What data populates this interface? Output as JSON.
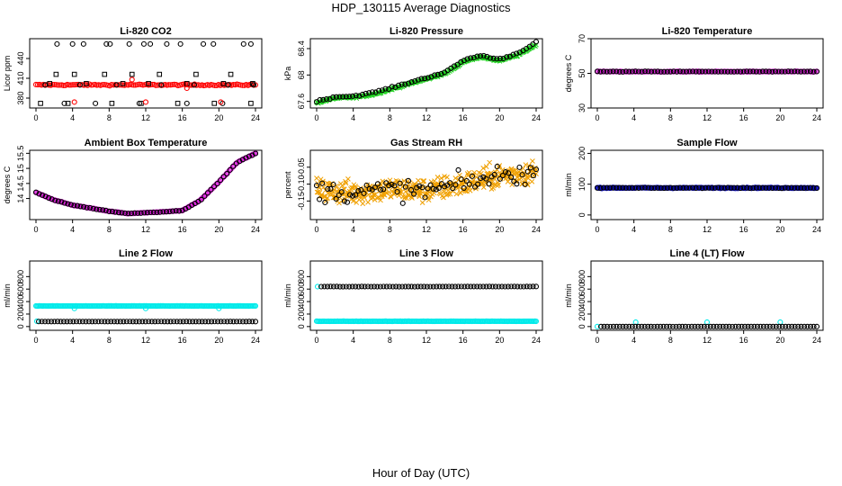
{
  "figure": {
    "title": "HDP_130115  Average Diagnostics",
    "xlabel": "Hour of Day (UTC)"
  },
  "colors": {
    "red": "#ff0000",
    "magenta": "#e020e0",
    "green": "#1fd21f",
    "orange": "#f0a000",
    "blue": "#1010d0",
    "cyan": "#00eaea",
    "black": "#000000"
  },
  "chart_data": [
    {
      "type": "scatter",
      "title": "Li-820 CO2",
      "ylabel": "Licor ppm",
      "xlim": [
        0,
        24
      ],
      "ylim": [
        365,
        470
      ],
      "xticks": [
        0,
        4,
        8,
        12,
        16,
        20,
        24
      ],
      "yticks": [
        380,
        410,
        440
      ],
      "series": [
        {
          "color": "red",
          "marker": "circle",
          "shape": "flat",
          "start": 400,
          "end": 400,
          "amp": 0,
          "noise": 1,
          "n": 120,
          "x0": 0,
          "x1": 24
        },
        {
          "color": "black",
          "marker": "square",
          "values": [
            [
              0.5,
              372
            ],
            [
              1.5,
              402
            ],
            [
              2.2,
              416
            ],
            [
              3.5,
              372
            ],
            [
              4.2,
              416
            ],
            [
              5.5,
              402
            ],
            [
              7.5,
              416
            ],
            [
              8.3,
              372
            ],
            [
              9.5,
              402
            ],
            [
              10.5,
              416
            ],
            [
              11.5,
              372
            ],
            [
              12.3,
              402
            ],
            [
              13.5,
              416
            ],
            [
              15.5,
              372
            ],
            [
              16.5,
              402
            ],
            [
              17.5,
              416
            ],
            [
              19.5,
              372
            ],
            [
              20.5,
              402
            ],
            [
              21.3,
              416
            ],
            [
              23.5,
              372
            ],
            [
              23.7,
              402
            ]
          ]
        },
        {
          "color": "black",
          "marker": "circle",
          "values": [
            [
              1.0,
              400
            ],
            [
              2.3,
              462
            ],
            [
              3.1,
              372
            ],
            [
              4.0,
              462
            ],
            [
              4.8,
              400
            ],
            [
              5.2,
              462
            ],
            [
              6.5,
              372
            ],
            [
              7.7,
              462
            ],
            [
              8.1,
              462
            ],
            [
              8.8,
              400
            ],
            [
              10.2,
              462
            ],
            [
              11.3,
              372
            ],
            [
              11.8,
              462
            ],
            [
              12.5,
              462
            ],
            [
              13.7,
              400
            ],
            [
              14.3,
              462
            ],
            [
              15.8,
              462
            ],
            [
              16.5,
              372
            ],
            [
              17.3,
              400
            ],
            [
              18.3,
              462
            ],
            [
              19.4,
              462
            ],
            [
              20.4,
              372
            ],
            [
              21.0,
              400
            ],
            [
              22.7,
              462
            ],
            [
              23.5,
              462
            ],
            [
              23.8,
              400
            ]
          ]
        },
        {
          "color": "red",
          "marker": "circle",
          "values": [
            [
              4.2,
              374
            ],
            [
              10.5,
              408
            ],
            [
              12.0,
              374
            ],
            [
              16.5,
              395
            ],
            [
              20.2,
              374
            ]
          ]
        }
      ]
    },
    {
      "type": "scatter",
      "title": "Li-820 Pressure",
      "ylabel": "kPa",
      "xlim": [
        0,
        24
      ],
      "ylim": [
        67.5,
        68.55
      ],
      "xticks": [
        0,
        4,
        8,
        12,
        16,
        20,
        24
      ],
      "yticks": [
        67.6,
        68.0,
        68.4
      ],
      "series": [
        {
          "color": "green",
          "marker": "cross",
          "shape": "curve",
          "points": [
            [
              0,
              67.58
            ],
            [
              2,
              67.65
            ],
            [
              4,
              67.66
            ],
            [
              6,
              67.7
            ],
            [
              8,
              67.78
            ],
            [
              10,
              67.86
            ],
            [
              12,
              67.94
            ],
            [
              14,
              68.02
            ],
            [
              15,
              68.1
            ],
            [
              16,
              68.2
            ],
            [
              18,
              68.28
            ],
            [
              19,
              68.24
            ],
            [
              20,
              68.22
            ],
            [
              22,
              68.3
            ],
            [
              24,
              68.46
            ]
          ],
          "noise": 0.015,
          "n": 260,
          "x0": 0,
          "x1": 24
        },
        {
          "color": "black",
          "marker": "circle",
          "shape": "curve",
          "points": [
            [
              0,
              67.6
            ],
            [
              2,
              67.67
            ],
            [
              4,
              67.68
            ],
            [
              6,
              67.73
            ],
            [
              8,
              67.8
            ],
            [
              10,
              67.88
            ],
            [
              12,
              67.96
            ],
            [
              14,
              68.04
            ],
            [
              15,
              68.12
            ],
            [
              16,
              68.22
            ],
            [
              18,
              68.3
            ],
            [
              19,
              68.26
            ],
            [
              20,
              68.24
            ],
            [
              22,
              68.33
            ],
            [
              24,
              68.5
            ]
          ],
          "noise": 0.012,
          "n": 68,
          "x0": 0,
          "x1": 24
        }
      ]
    },
    {
      "type": "scatter",
      "title": "Li-820 Temperature",
      "ylabel": "degrees C",
      "xlim": [
        0,
        24
      ],
      "ylim": [
        30,
        70
      ],
      "xticks": [
        0,
        4,
        8,
        12,
        16,
        20,
        24
      ],
      "yticks": [
        30,
        50,
        70
      ],
      "series": [
        {
          "color": "magenta",
          "marker": "circle",
          "shape": "flat",
          "start": 51,
          "end": 51,
          "amp": 0,
          "noise": 0.2,
          "n": 180,
          "x0": 0,
          "x1": 24
        },
        {
          "color": "black",
          "marker": "circle",
          "shape": "flat",
          "start": 51,
          "end": 51,
          "amp": 0,
          "noise": 0.2,
          "n": 70,
          "x0": 0,
          "x1": 24
        }
      ]
    },
    {
      "type": "scatter",
      "title": "Ambient Box Temperature",
      "ylabel": "degrees C",
      "xlim": [
        0,
        24
      ],
      "ylim": [
        13.3,
        15.6
      ],
      "xticks": [
        0,
        4,
        8,
        12,
        16,
        20,
        24
      ],
      "yticks": [
        14.0,
        14.5,
        15.0,
        15.5
      ],
      "series": [
        {
          "color": "magenta",
          "marker": "circle",
          "shape": "curve",
          "points": [
            [
              0,
              14.2
            ],
            [
              2,
              13.95
            ],
            [
              4,
              13.78
            ],
            [
              6,
              13.68
            ],
            [
              8,
              13.58
            ],
            [
              10,
              13.5
            ],
            [
              12,
              13.53
            ],
            [
              14,
              13.56
            ],
            [
              16,
              13.6
            ],
            [
              18,
              13.95
            ],
            [
              20,
              14.55
            ],
            [
              22,
              15.2
            ],
            [
              24,
              15.5
            ]
          ],
          "noise": 0.01,
          "n": 220,
          "x0": 0,
          "x1": 24
        },
        {
          "color": "black",
          "marker": "circle",
          "shape": "curve",
          "points": [
            [
              0,
              14.2
            ],
            [
              2,
              13.95
            ],
            [
              4,
              13.78
            ],
            [
              6,
              13.68
            ],
            [
              8,
              13.58
            ],
            [
              10,
              13.5
            ],
            [
              12,
              13.53
            ],
            [
              14,
              13.56
            ],
            [
              16,
              13.6
            ],
            [
              18,
              13.95
            ],
            [
              20,
              14.55
            ],
            [
              22,
              15.2
            ],
            [
              24,
              15.5
            ]
          ],
          "noise": 0.01,
          "n": 70,
          "x0": 0,
          "x1": 24
        }
      ]
    },
    {
      "type": "scatter",
      "title": "Gas Stream RH",
      "ylabel": "percent",
      "xlim": [
        0,
        24
      ],
      "ylim": [
        -0.205,
        0.0
      ],
      "xticks": [
        0,
        4,
        8,
        12,
        16,
        20,
        24
      ],
      "yticks": [
        -0.15,
        -0.1,
        -0.05
      ],
      "series": [
        {
          "color": "orange",
          "marker": "cross",
          "shape": "curve",
          "points": [
            [
              0,
              -0.12
            ],
            [
              4,
              -0.125
            ],
            [
              8,
              -0.115
            ],
            [
              12,
              -0.12
            ],
            [
              16,
              -0.1
            ],
            [
              20,
              -0.075
            ],
            [
              24,
              -0.065
            ]
          ],
          "noise": 0.035,
          "n": 420,
          "x0": 0,
          "x1": 24
        },
        {
          "color": "black",
          "marker": "circle",
          "shape": "curve",
          "points": [
            [
              0,
              -0.12
            ],
            [
              4,
              -0.125
            ],
            [
              8,
              -0.115
            ],
            [
              12,
              -0.12
            ],
            [
              16,
              -0.1
            ],
            [
              20,
              -0.075
            ],
            [
              24,
              -0.065
            ]
          ],
          "noise": 0.03,
          "n": 80,
          "x0": 0,
          "x1": 24
        }
      ]
    },
    {
      "type": "scatter",
      "title": "Sample Flow",
      "ylabel": "ml/min",
      "xlim": [
        0,
        24
      ],
      "ylim": [
        -15,
        210
      ],
      "xticks": [
        0,
        4,
        8,
        12,
        16,
        20,
        24
      ],
      "yticks": [
        0,
        100,
        200
      ],
      "series": [
        {
          "color": "blue",
          "marker": "circle",
          "shape": "flat",
          "start": 88,
          "end": 88,
          "amp": 0,
          "noise": 1.5,
          "n": 240,
          "x0": 0,
          "x1": 24
        },
        {
          "color": "black",
          "marker": "circle",
          "shape": "flat",
          "start": 88,
          "end": 88,
          "amp": 0,
          "noise": 1,
          "n": 70,
          "x0": 0,
          "x1": 24
        }
      ]
    },
    {
      "type": "scatter",
      "title": "Line 2 Flow",
      "ylabel": "ml/min",
      "xlim": [
        0,
        24
      ],
      "ylim": [
        -60,
        1050
      ],
      "xticks": [
        0,
        4,
        8,
        12,
        16,
        20,
        24
      ],
      "yticks": [
        0,
        200,
        400,
        600,
        800
      ],
      "series": [
        {
          "color": "cyan",
          "marker": "circle",
          "shape": "flat",
          "start": 330,
          "end": 330,
          "amp": 0,
          "noise": 2,
          "n": 200,
          "x0": 0,
          "x1": 24
        },
        {
          "color": "cyan",
          "marker": "circle",
          "values": [
            [
              4.2,
              290
            ],
            [
              12.0,
              290
            ],
            [
              20.0,
              290
            ]
          ]
        },
        {
          "color": "cyan",
          "marker": "circle",
          "values": [
            [
              0.1,
              85
            ]
          ]
        },
        {
          "color": "black",
          "marker": "circle",
          "shape": "flat",
          "start": 80,
          "end": 80,
          "amp": 0,
          "noise": 1,
          "n": 70,
          "x0": 0.3,
          "x1": 24
        }
      ]
    },
    {
      "type": "scatter",
      "title": "Line 3 Flow",
      "ylabel": "ml/min",
      "xlim": [
        0,
        24
      ],
      "ylim": [
        -60,
        1050
      ],
      "xticks": [
        0,
        4,
        8,
        12,
        16,
        20,
        24
      ],
      "yticks": [
        0,
        200,
        400,
        600,
        800
      ],
      "series": [
        {
          "color": "cyan",
          "marker": "circle",
          "shape": "flat",
          "start": 85,
          "end": 85,
          "amp": 0,
          "noise": 2,
          "n": 200,
          "x0": 0,
          "x1": 24
        },
        {
          "color": "cyan",
          "marker": "circle",
          "values": [
            [
              0.1,
              640
            ]
          ]
        },
        {
          "color": "black",
          "marker": "circle",
          "shape": "flat",
          "start": 640,
          "end": 640,
          "amp": 0,
          "noise": 2,
          "n": 70,
          "x0": 0.5,
          "x1": 24
        }
      ]
    },
    {
      "type": "scatter",
      "title": "Line 4 (LT) Flow",
      "ylabel": "ml/min",
      "xlim": [
        0,
        24
      ],
      "ylim": [
        -60,
        1050
      ],
      "xticks": [
        0,
        4,
        8,
        12,
        16,
        20,
        24
      ],
      "yticks": [
        0,
        200,
        400,
        600,
        800
      ],
      "series": [
        {
          "color": "cyan",
          "marker": "circle",
          "values": [
            [
              0.0,
              0
            ],
            [
              4.2,
              70
            ],
            [
              12.0,
              70
            ],
            [
              20.0,
              70
            ]
          ]
        },
        {
          "color": "black",
          "marker": "circle",
          "shape": "flat",
          "start": 0,
          "end": 0,
          "amp": 0,
          "noise": 0.5,
          "n": 70,
          "x0": 0.4,
          "x1": 24
        }
      ]
    }
  ]
}
